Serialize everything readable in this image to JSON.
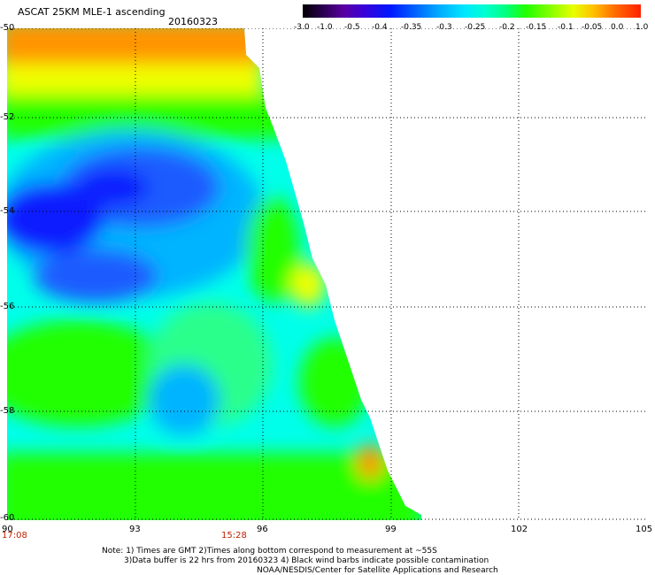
{
  "title": "ASCAT 25KM MLE-1 ascending",
  "date": "20160323",
  "colorbar": {
    "ticks": [
      "-3.0",
      "-1.0",
      "-0.5",
      "-0.4",
      "-0.35",
      "-0.3",
      "-0.25",
      "-0.2",
      "-0.15",
      "-0.1",
      "-0.05",
      "0.0",
      "1.0"
    ]
  },
  "axes": {
    "lon_ticks": [
      "90",
      "93",
      "96",
      "99",
      "102",
      "105"
    ],
    "lat_ticks": [
      "-50",
      "-52",
      "-54",
      "-56",
      "-58",
      "-60"
    ],
    "times": [
      "17:08",
      "15:28"
    ]
  },
  "colors": {
    "orange": "#ff9400",
    "yellow": "#f0ff00",
    "green": "#22ff00",
    "lightgreen": "#2cff8c",
    "cyan": "#00ffea",
    "lightblue": "#00b4ff",
    "blue": "#1a5cff",
    "darkblue": "#0a1cff",
    "time_label": "#c02000"
  },
  "notes": [
    "Note: 1) Times are GMT 2)Times along bottom correspond to measurement at ~55S",
    "3)Data buffer is 22 hrs from 20160323 4) Black wind barbs indicate possible contamination",
    "NOAA/NESDIS/Center for Satellite Applications and Research"
  ]
}
